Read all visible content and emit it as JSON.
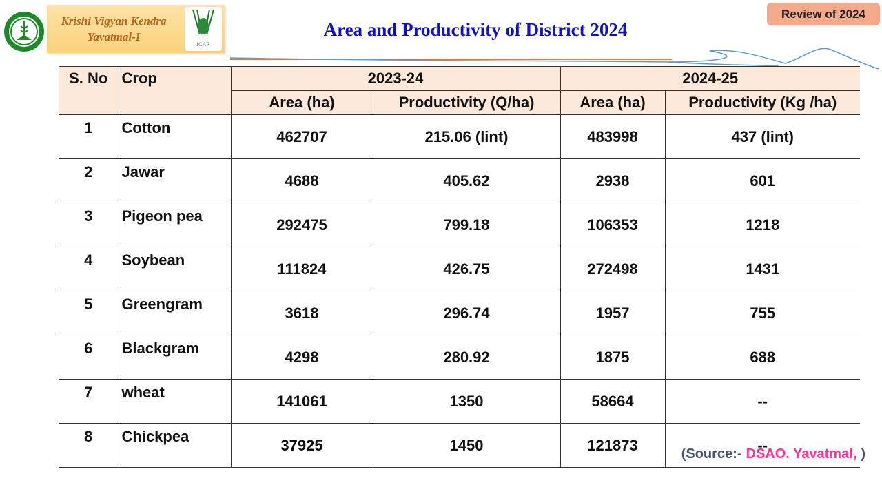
{
  "header": {
    "org_line1": "Krishi Vigyan Kendra",
    "org_line2": "Yavatmal-I",
    "icar_label": "ICAR",
    "title": "Area and Productivity of District 2024",
    "badge": "Review of 2024"
  },
  "table": {
    "col_sno": "S. No",
    "col_crop": "Crop",
    "period1": "2023-24",
    "period2": "2024-25",
    "p1_area": "Area (ha)",
    "p1_prod": "Productivity (Q/ha)",
    "p2_area": "Area (ha)",
    "p2_prod": "Productivity (Kg /ha)",
    "rows": [
      {
        "sno": "1",
        "crop": "Cotton",
        "area1": "462707",
        "prod1": "215.06 (lint)",
        "area2": "483998",
        "prod2": "437 (lint)"
      },
      {
        "sno": "2",
        "crop": "Jawar",
        "area1": "4688",
        "prod1": "405.62",
        "area2": "2938",
        "prod2": "601"
      },
      {
        "sno": "3",
        "crop": "Pigeon pea",
        "area1": "292475",
        "prod1": "799.18",
        "area2": "106353",
        "prod2": "1218"
      },
      {
        "sno": "4",
        "crop": "Soybean",
        "area1": "111824",
        "prod1": "426.75",
        "area2": "272498",
        "prod2": "1431"
      },
      {
        "sno": "5",
        "crop": "Greengram",
        "area1": "3618",
        "prod1": "296.74",
        "area2": "1957",
        "prod2": "755"
      },
      {
        "sno": "6",
        "crop": "Blackgram",
        "area1": "4298",
        "prod1": "280.92",
        "area2": "1875",
        "prod2": "688"
      },
      {
        "sno": "7",
        "crop": "wheat",
        "area1": "141061",
        "prod1": "1350",
        "area2": "58664",
        "prod2": "--"
      },
      {
        "sno": "8",
        "crop": "Chickpea",
        "area1": "37925",
        "prod1": "1450",
        "area2": "121873",
        "prod2": "--"
      }
    ]
  },
  "source": {
    "prefix": "(Source:- ",
    "name": "DSAO. Yavatmal,",
    "suffix": ")"
  }
}
